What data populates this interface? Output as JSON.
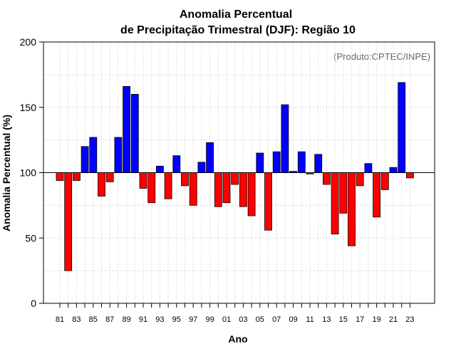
{
  "chart_data": {
    "type": "bar",
    "title": "Anomalia Percentual",
    "subtitle": "de Precipitação Trimestral (DJF): Região 10",
    "xlabel": "Ano",
    "ylabel": "Anomalia Percentual (%)",
    "annotation": "(Produto:CPTEC/INPE)",
    "baseline": 100,
    "ylim": [
      0,
      200
    ],
    "yticks": [
      0,
      50,
      100,
      150,
      200
    ],
    "grid": true,
    "categories": [
      "81",
      "82",
      "83",
      "84",
      "85",
      "86",
      "87",
      "88",
      "89",
      "90",
      "91",
      "92",
      "93",
      "94",
      "95",
      "96",
      "97",
      "98",
      "99",
      "00",
      "01",
      "02",
      "03",
      "04",
      "05",
      "06",
      "07",
      "08",
      "09",
      "10",
      "11",
      "12",
      "13",
      "14",
      "15",
      "16",
      "17",
      "18",
      "19",
      "20",
      "21",
      "22",
      "23"
    ],
    "x_tick_labels": [
      "81",
      "83",
      "85",
      "87",
      "89",
      "91",
      "93",
      "95",
      "97",
      "99",
      "01",
      "03",
      "05",
      "07",
      "09",
      "11",
      "13",
      "15",
      "17",
      "19",
      "21",
      "23"
    ],
    "values": [
      94,
      25,
      94,
      120,
      127,
      82,
      93,
      127,
      166,
      160,
      88,
      77,
      105,
      80,
      113,
      90,
      75,
      108,
      123,
      74,
      77,
      91,
      74,
      67,
      115,
      56,
      116,
      152,
      101,
      116,
      99,
      114,
      91,
      53,
      69,
      44,
      90,
      107,
      66,
      87,
      104,
      169,
      96
    ],
    "colors": {
      "above": "#0000ff",
      "below": "#ff0000",
      "outline": "#000000"
    }
  }
}
